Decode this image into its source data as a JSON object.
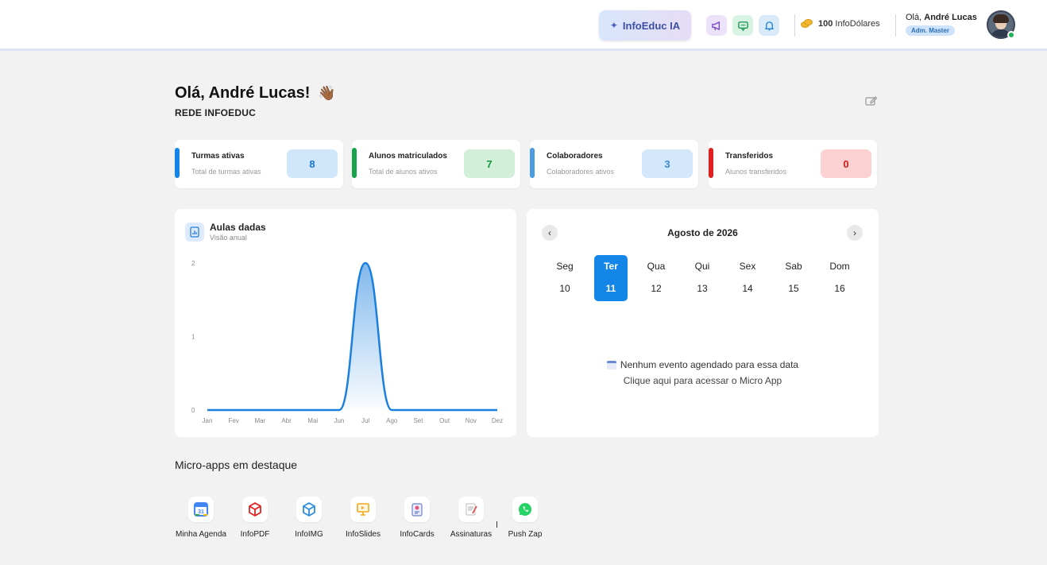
{
  "header": {
    "ai_button": "InfoEduc IA",
    "icons": [
      "megaphone-icon",
      "chat-icon",
      "bell-icon"
    ],
    "coins_amount": "100",
    "coins_unit": "InfoDólares",
    "greeting_prefix": "Olá,",
    "user_name": "André Lucas",
    "role": "Adm. Master"
  },
  "welcome": {
    "title": "Olá, André Lucas!",
    "emoji": "👋🏾",
    "network": "REDE INFOEDUC"
  },
  "stats": [
    {
      "title": "Turmas ativas",
      "subtitle": "Total de turmas ativas",
      "value": "8",
      "color": "#1386e8"
    },
    {
      "title": "Alunos matriculados",
      "subtitle": "Total de alunos ativos",
      "value": "7",
      "color": "#17a34a"
    },
    {
      "title": "Colaboradores",
      "subtitle": "Colaboradores ativos",
      "value": "3",
      "color": "#4a9be0"
    },
    {
      "title": "Transferidos",
      "subtitle": "Alunos transferidos",
      "value": "0",
      "color": "#e02020"
    }
  ],
  "chart": {
    "title": "Aulas dadas",
    "subtitle": "Visão anual"
  },
  "chart_data": {
    "type": "area",
    "categories": [
      "Jan",
      "Fev",
      "Mar",
      "Abr",
      "Mai",
      "Jun",
      "Jul",
      "Ago",
      "Set",
      "Out",
      "Nov",
      "Dez"
    ],
    "values": [
      0,
      0,
      0,
      0,
      0,
      0,
      2,
      0,
      0,
      0,
      0,
      0
    ],
    "ylim": [
      0,
      2
    ],
    "yticks": [
      "0",
      "1",
      "2"
    ],
    "color": "#1a7fdd"
  },
  "calendar": {
    "month": "Agosto de 2026",
    "days": [
      {
        "name": "Seg",
        "date": "10",
        "selected": false
      },
      {
        "name": "Ter",
        "date": "11",
        "selected": true
      },
      {
        "name": "Qua",
        "date": "12",
        "selected": false
      },
      {
        "name": "Qui",
        "date": "13",
        "selected": false
      },
      {
        "name": "Sex",
        "date": "14",
        "selected": false
      },
      {
        "name": "Sab",
        "date": "15",
        "selected": false
      },
      {
        "name": "Dom",
        "date": "16",
        "selected": false
      }
    ],
    "no_event": "Nenhum evento agendado para essa data",
    "access_link": "Clique aqui para acessar o Micro App"
  },
  "micro_apps": {
    "title": "Micro-apps em destaque",
    "items": [
      {
        "label": "Minha Agenda",
        "icon": "calendar-app-icon"
      },
      {
        "label": "InfoPDF",
        "icon": "red-cube-icon"
      },
      {
        "label": "InfoIMG",
        "icon": "blue-cube-icon"
      },
      {
        "label": "InfoSlides",
        "icon": "presentation-icon"
      },
      {
        "label": "InfoCards",
        "icon": "cards-icon"
      },
      {
        "label": "Assinaturas",
        "icon": "signature-icon"
      },
      {
        "label": "Push Zap",
        "icon": "whatsapp-icon"
      }
    ]
  }
}
